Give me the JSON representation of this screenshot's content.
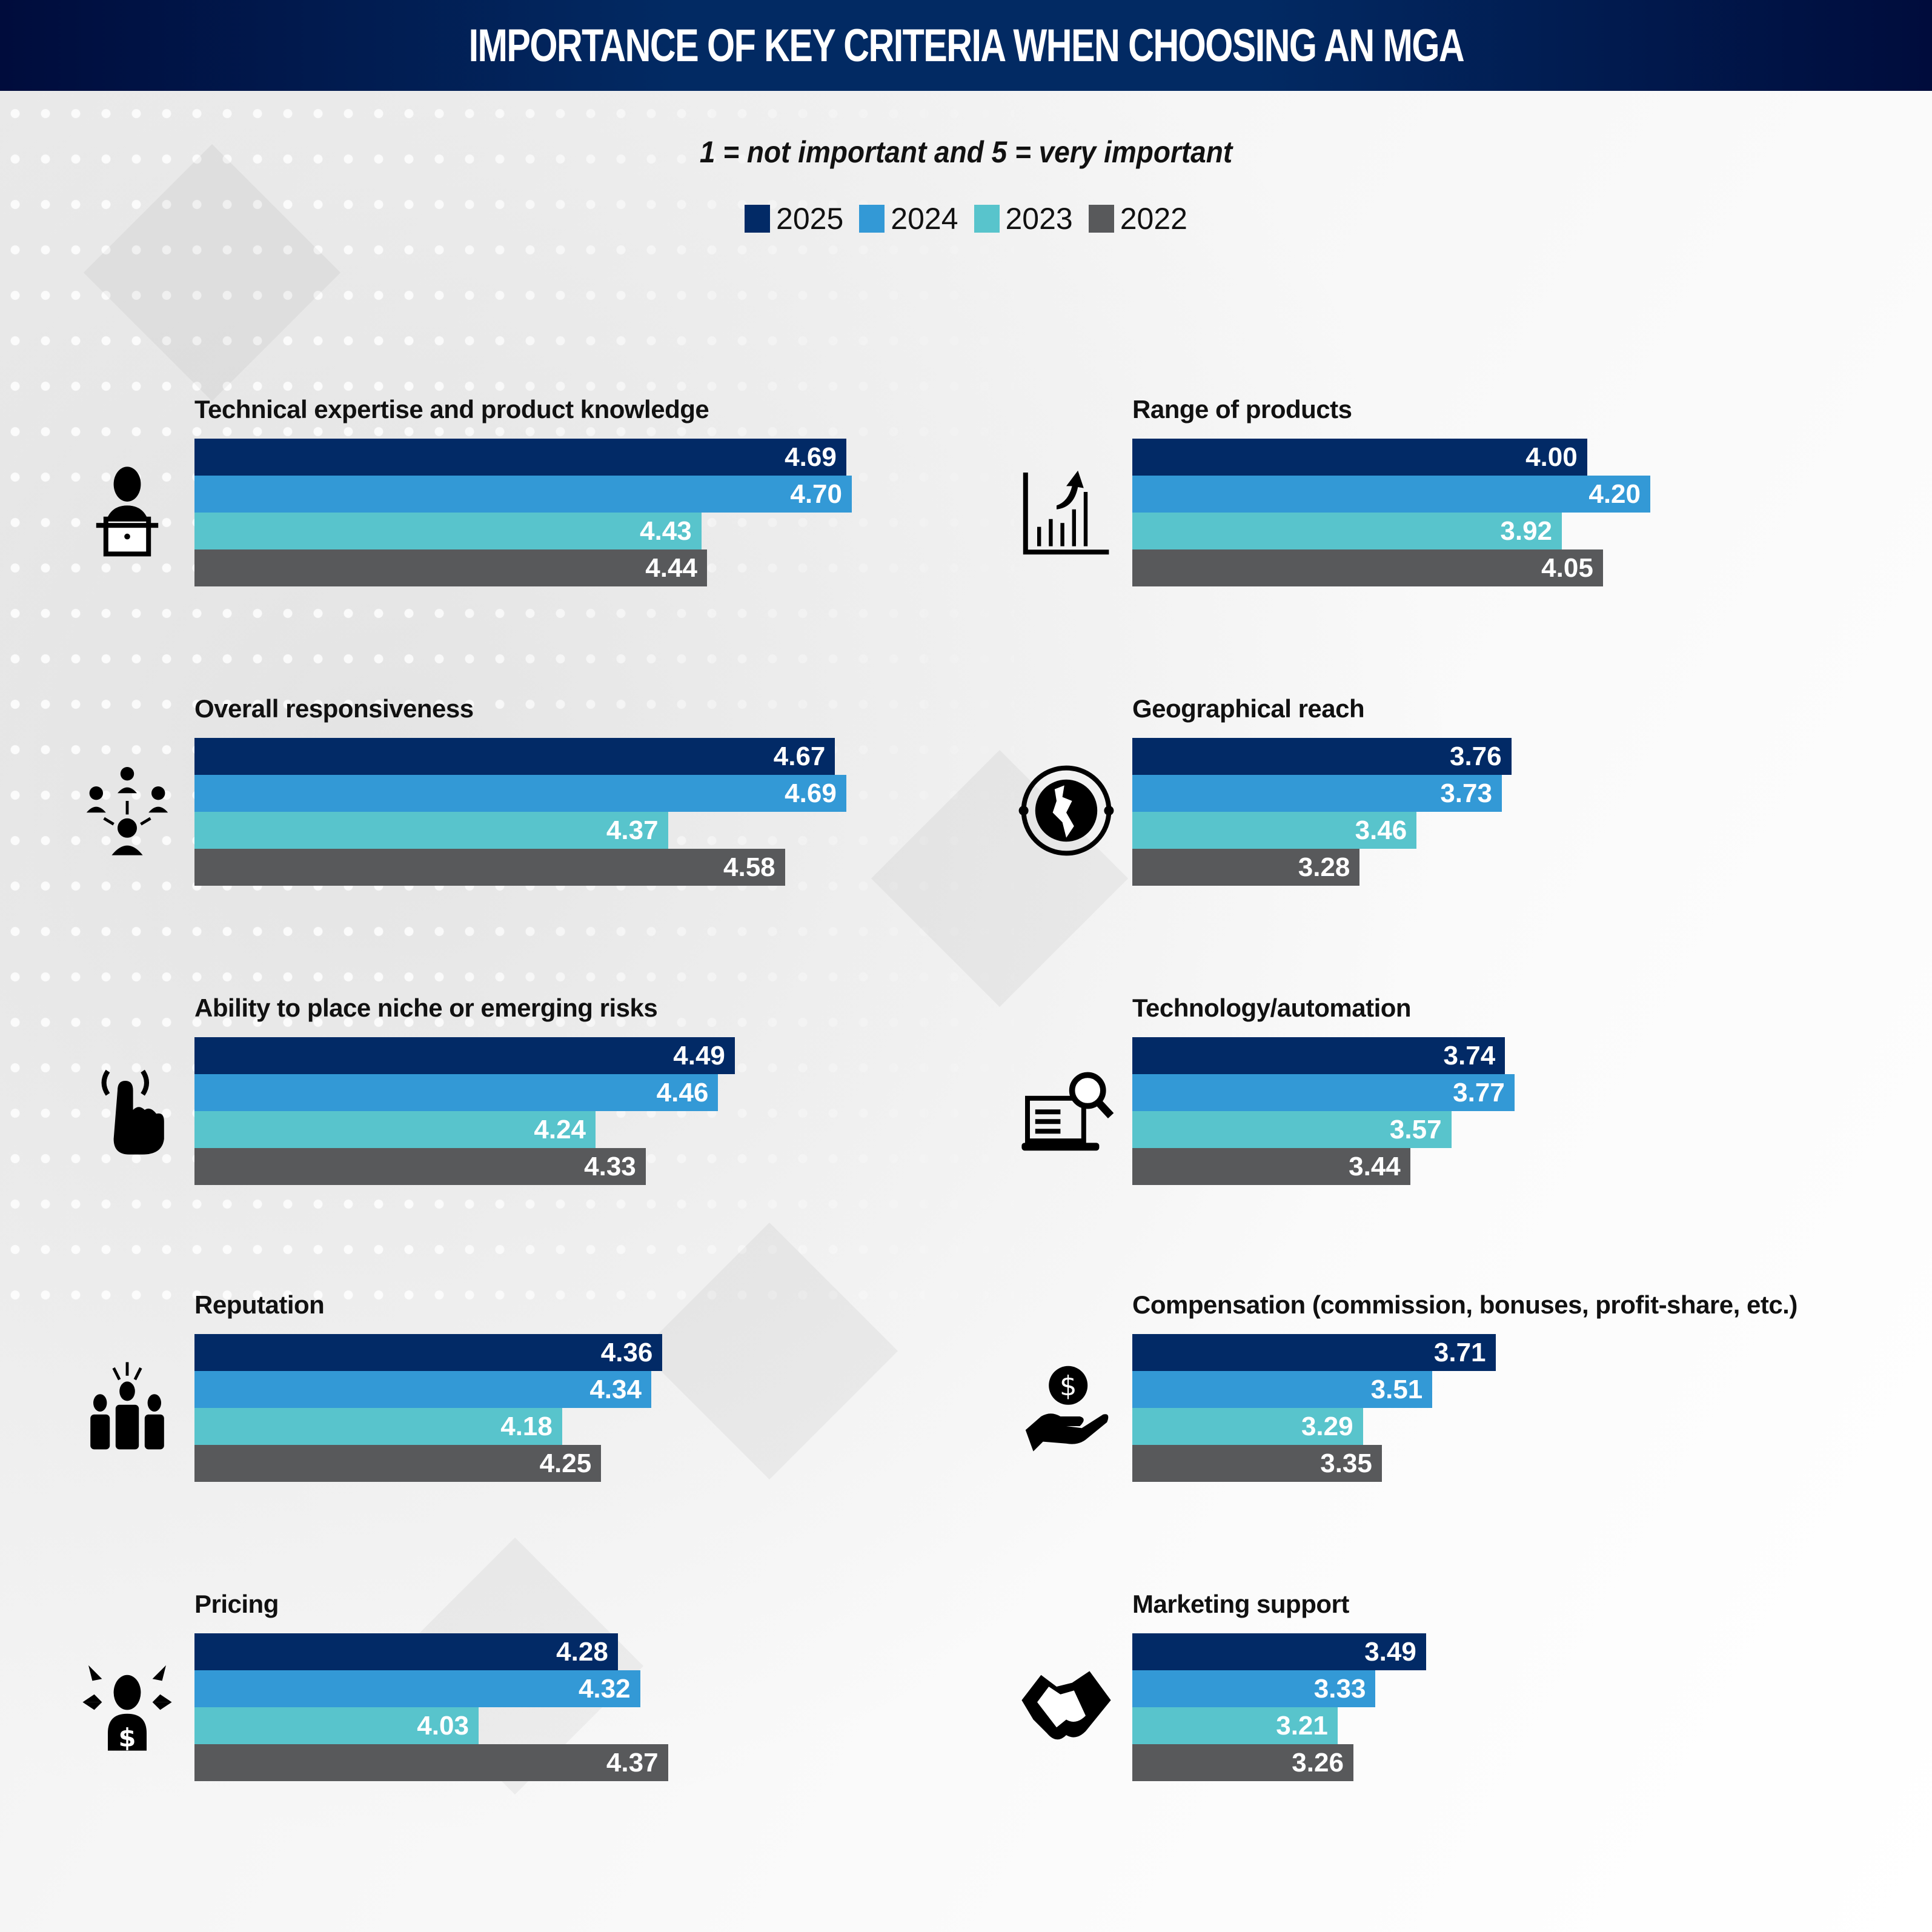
{
  "header": {
    "title": "IMPORTANCE OF KEY CRITERIA WHEN CHOOSING AN MGA"
  },
  "subtitle": "1 = not important and 5 = very important",
  "legend": [
    {
      "label": "2025",
      "color": "#022a66"
    },
    {
      "label": "2024",
      "color": "#3399d6"
    },
    {
      "label": "2023",
      "color": "#58c4cc"
    },
    {
      "label": "2022",
      "color": "#58595b"
    }
  ],
  "chart_data": {
    "type": "bar",
    "orientation": "horizontal",
    "title": "IMPORTANCE OF KEY CRITERIA WHEN CHOOSING AN MGA",
    "subtitle": "1 = not important and 5 = very important",
    "xlabel": "",
    "ylabel": "",
    "grid": false,
    "legend_position": "top-center",
    "series_names": [
      "2025",
      "2024",
      "2023",
      "2022"
    ],
    "column_domains": {
      "left": [
        3.52,
        4.7
      ],
      "right": [
        2.56,
        4.2
      ]
    },
    "panels": [
      {
        "column": "left",
        "title": "Technical expertise and product knowledge",
        "icon": "person-laptop-icon",
        "values": [
          4.69,
          4.7,
          4.43,
          4.44
        ],
        "labels": [
          "4.69",
          "4.70",
          "4.43",
          "4.44"
        ]
      },
      {
        "column": "right",
        "title": "Range of products",
        "icon": "growth-chart-icon",
        "values": [
          4.0,
          4.2,
          3.92,
          4.05
        ],
        "labels": [
          "4.00",
          "4.20",
          "3.92",
          "4.05"
        ]
      },
      {
        "column": "left",
        "title": "Overall responsiveness",
        "icon": "network-people-icon",
        "values": [
          4.67,
          4.69,
          4.37,
          4.58
        ],
        "labels": [
          "4.67",
          "4.69",
          "4.37",
          "4.58"
        ]
      },
      {
        "column": "right",
        "title": "Geographical reach",
        "icon": "globe-icon",
        "values": [
          3.76,
          3.73,
          3.46,
          3.28
        ],
        "labels": [
          "3.76",
          "3.73",
          "3.46",
          "3.28"
        ]
      },
      {
        "column": "left",
        "title": "Ability to place niche or emerging risks",
        "icon": "touch-hand-icon",
        "values": [
          4.49,
          4.46,
          4.24,
          4.33
        ],
        "labels": [
          "4.49",
          "4.46",
          "4.24",
          "4.33"
        ]
      },
      {
        "column": "right",
        "title": "Technology/automation",
        "icon": "laptop-search-icon",
        "values": [
          3.74,
          3.77,
          3.57,
          3.44
        ],
        "labels": [
          "3.74",
          "3.77",
          "3.57",
          "3.44"
        ]
      },
      {
        "column": "left",
        "title": "Reputation",
        "icon": "group-leader-icon",
        "values": [
          4.36,
          4.34,
          4.18,
          4.25
        ],
        "labels": [
          "4.36",
          "4.34",
          "4.18",
          "4.25"
        ]
      },
      {
        "column": "right",
        "title": "Compensation (commission, bonuses, profit-share, etc.)",
        "icon": "hand-dollar-icon",
        "values": [
          3.71,
          3.51,
          3.29,
          3.35
        ],
        "labels": [
          "3.71",
          "3.51",
          "3.29",
          "3.35"
        ]
      },
      {
        "column": "left",
        "title": "Pricing",
        "icon": "person-dollar-arrows-icon",
        "values": [
          4.28,
          4.32,
          4.03,
          4.37
        ],
        "labels": [
          "4.28",
          "4.32",
          "4.03",
          "4.37"
        ]
      },
      {
        "column": "right",
        "title": "Marketing support",
        "icon": "handshake-icon",
        "values": [
          3.49,
          3.33,
          3.21,
          3.26
        ],
        "labels": [
          "3.49",
          "3.33",
          "3.21",
          "3.26"
        ]
      }
    ]
  }
}
